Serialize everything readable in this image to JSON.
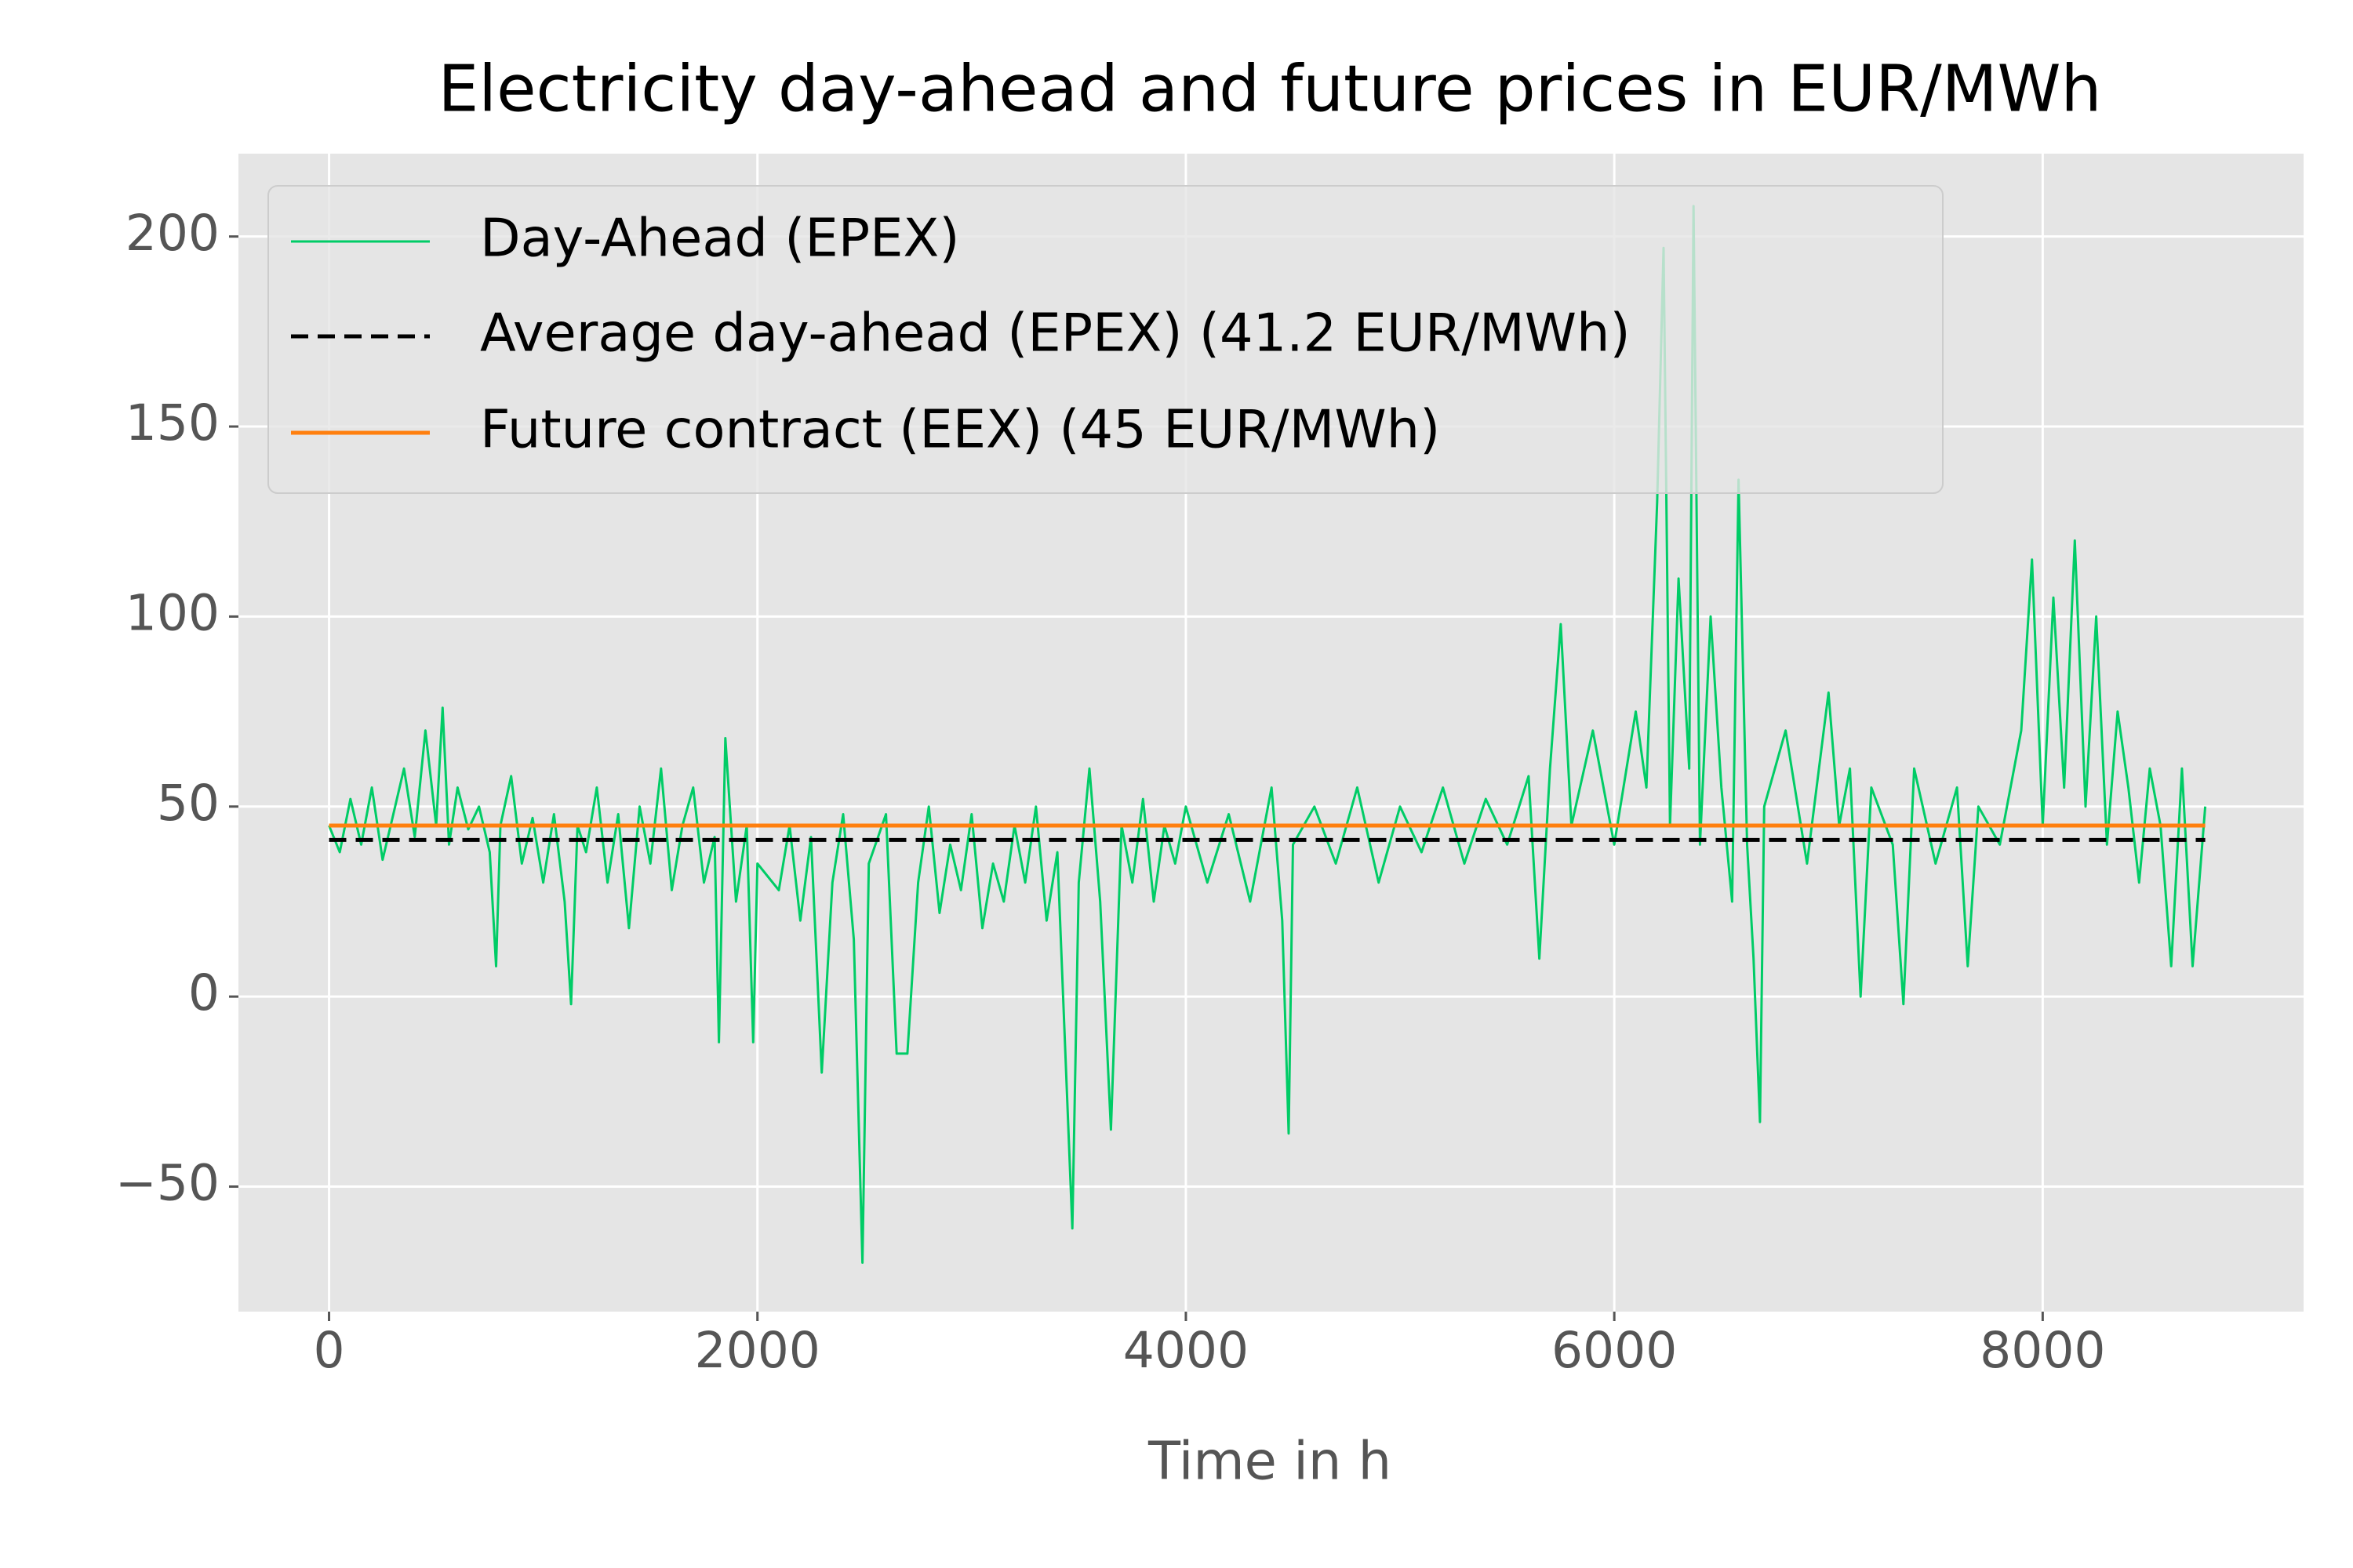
{
  "chart_data": {
    "type": "line",
    "title": "Electricity day-ahead and future prices in EUR/MWh",
    "x_label": "Time in h",
    "xlim": [
      -423,
      9218
    ],
    "ylim": [
      -82.9,
      221.8
    ],
    "xticks": [
      0,
      2000,
      4000,
      6000,
      8000
    ],
    "yticks": [
      {
        "value": -50,
        "label": "−50"
      },
      0,
      50,
      100,
      150,
      200
    ],
    "grid": true,
    "legend": "upper left",
    "series": [
      {
        "name": "Day-Ahead (EPEX)",
        "color": "#00cc66",
        "linestyle": "solid",
        "x": [
          0,
          50,
          100,
          150,
          200,
          250,
          300,
          350,
          400,
          450,
          500,
          530,
          560,
          600,
          650,
          700,
          750,
          780,
          800,
          850,
          900,
          950,
          1000,
          1050,
          1100,
          1130,
          1160,
          1200,
          1250,
          1300,
          1350,
          1400,
          1450,
          1500,
          1550,
          1600,
          1650,
          1700,
          1750,
          1800,
          1820,
          1850,
          1900,
          1950,
          1980,
          2000,
          2100,
          2150,
          2200,
          2250,
          2300,
          2350,
          2400,
          2450,
          2490,
          2520,
          2600,
          2650,
          2700,
          2750,
          2800,
          2850,
          2900,
          2950,
          3000,
          3050,
          3100,
          3150,
          3200,
          3250,
          3300,
          3350,
          3400,
          3470,
          3500,
          3550,
          3600,
          3650,
          3700,
          3750,
          3800,
          3850,
          3900,
          3950,
          4000,
          4100,
          4200,
          4300,
          4400,
          4450,
          4480,
          4500,
          4600,
          4700,
          4800,
          4900,
          5000,
          5100,
          5200,
          5300,
          5400,
          5500,
          5600,
          5650,
          5700,
          5750,
          5800,
          5900,
          6000,
          6100,
          6150,
          6200,
          6230,
          6260,
          6300,
          6350,
          6370,
          6400,
          6450,
          6500,
          6550,
          6580,
          6620,
          6650,
          6680,
          6700,
          6800,
          6900,
          7000,
          7050,
          7100,
          7150,
          7200,
          7300,
          7350,
          7400,
          7500,
          7600,
          7650,
          7700,
          7800,
          7900,
          7950,
          8000,
          8050,
          8100,
          8150,
          8200,
          8250,
          8300,
          8350,
          8400,
          8450,
          8500,
          8550,
          8600,
          8650,
          8700,
          8759
        ],
        "values": [
          45,
          38,
          52,
          40,
          55,
          36,
          48,
          60,
          42,
          70,
          45,
          76,
          40,
          55,
          44,
          50,
          38,
          8,
          45,
          58,
          35,
          47,
          30,
          48,
          25,
          -2,
          45,
          38,
          55,
          30,
          48,
          18,
          50,
          35,
          60,
          28,
          45,
          55,
          30,
          42,
          -12,
          68,
          25,
          45,
          -12,
          35,
          28,
          45,
          20,
          42,
          -20,
          30,
          48,
          15,
          -70,
          35,
          48,
          -15,
          -15,
          30,
          50,
          22,
          40,
          28,
          48,
          18,
          35,
          25,
          45,
          30,
          50,
          20,
          38,
          -61,
          30,
          60,
          25,
          -35,
          45,
          30,
          52,
          25,
          45,
          35,
          50,
          30,
          48,
          25,
          55,
          20,
          -36,
          40,
          50,
          35,
          55,
          30,
          50,
          38,
          55,
          35,
          52,
          40,
          58,
          10,
          60,
          98,
          45,
          70,
          40,
          75,
          55,
          130,
          197,
          45,
          110,
          60,
          208,
          40,
          100,
          55,
          25,
          136,
          40,
          10,
          -33,
          50,
          70,
          35,
          80,
          45,
          60,
          0,
          55,
          40,
          -2,
          60,
          35,
          55,
          8,
          50,
          40,
          70,
          115,
          45,
          105,
          55,
          120,
          50,
          100,
          40,
          75,
          55,
          30,
          60,
          45,
          8,
          60,
          8,
          50
        ]
      },
      {
        "name": "Average day-ahead (EPEX) (41.2 EUR/MWh)",
        "color": "#000000",
        "linestyle": "dashed",
        "x": [
          0,
          8759
        ],
        "values": [
          41.2,
          41.2
        ]
      },
      {
        "name": "Future contract (EEX) (45 EUR/MWh)",
        "color": "#ff7f0e",
        "linestyle": "solid",
        "x": [
          0,
          8759
        ],
        "values": [
          45,
          45
        ]
      }
    ]
  }
}
